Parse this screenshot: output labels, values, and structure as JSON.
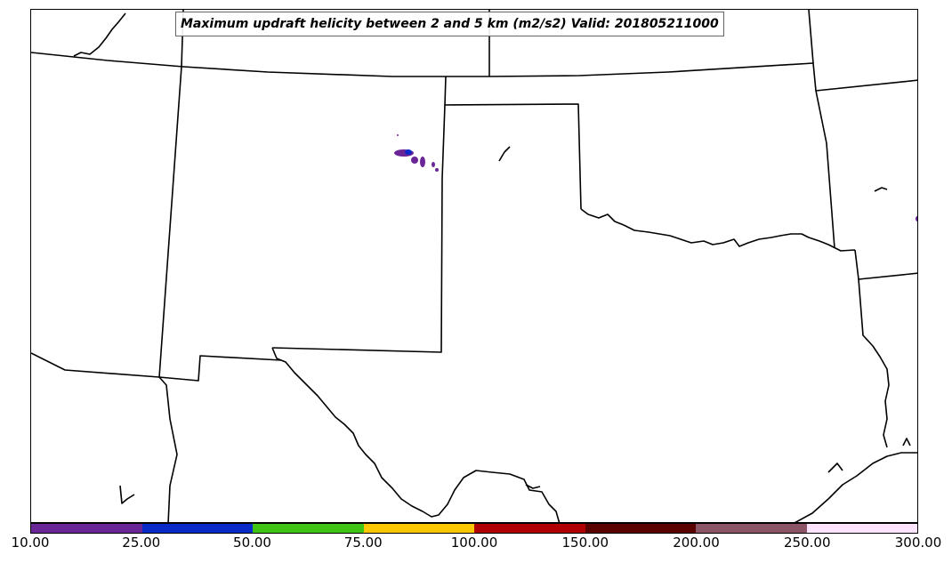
{
  "title": "Maximum updraft helicity between 2 and 5 km (m2/s2) Valid: 201805211000",
  "colorbar": {
    "ticks": [
      "10.00",
      "25.00",
      "50.00",
      "75.00",
      "100.00",
      "150.00",
      "200.00",
      "250.00",
      "300.00"
    ],
    "colors": [
      "#6a2596",
      "#0a2ac8",
      "#3fc416",
      "#ffc700",
      "#b00000",
      "#5a0000",
      "#8b5566",
      "#ffe4ff"
    ]
  },
  "colors": {
    "boundary": "#000000",
    "storm_low": "#6a2596",
    "storm_mid": "#0a2ac8"
  }
}
